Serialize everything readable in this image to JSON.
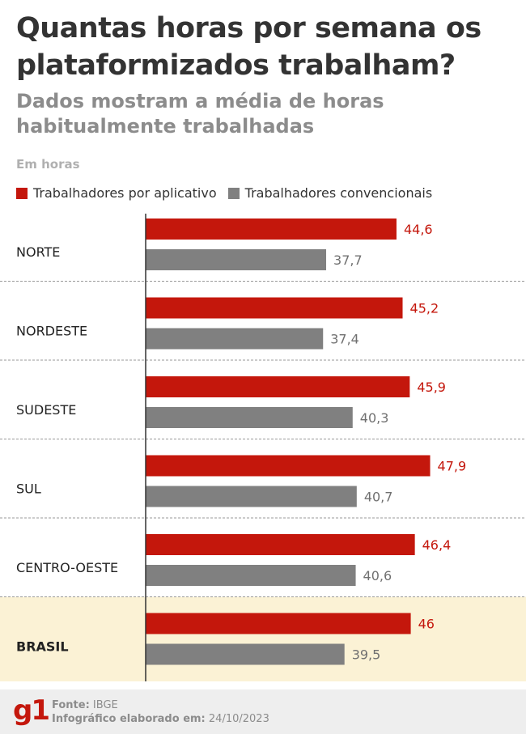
{
  "title": "Quantas horas por semana os plataformizados trabalham?",
  "subtitle": "Dados mostram a média de horas habitualmente trabalhadas",
  "units_label": "Em horas",
  "colors": {
    "app": "#c4170c",
    "conventional": "#808080",
    "highlight_bg": "#fbf2d5"
  },
  "chart_data": {
    "type": "bar",
    "orientation": "horizontal",
    "categories": [
      "NORTE",
      "NORDESTE",
      "SUDESTE",
      "SUL",
      "CENTRO-OESTE",
      "BRASIL"
    ],
    "series": [
      {
        "name": "Trabalhadores por aplicativo",
        "values": [
          44.6,
          45.2,
          45.9,
          47.9,
          46.4,
          46
        ]
      },
      {
        "name": "Trabalhadores convencionais",
        "values": [
          37.7,
          37.4,
          40.3,
          40.7,
          40.6,
          39.5
        ]
      }
    ],
    "value_labels": [
      [
        "44,6",
        "45,2",
        "45,9",
        "47,9",
        "46,4",
        "46"
      ],
      [
        "37,7",
        "37,4",
        "40,3",
        "40,7",
        "40,6",
        "39,5"
      ]
    ],
    "highlighted_category": "BRASIL",
    "xlim": [
      20,
      50
    ],
    "grid": false,
    "legend_position": "top-left"
  },
  "footer": {
    "logo": "g1",
    "source_label": "Fonte:",
    "source_value": "IBGE",
    "date_label": "Infográfico elaborado em:",
    "date_value": "24/10/2023"
  }
}
